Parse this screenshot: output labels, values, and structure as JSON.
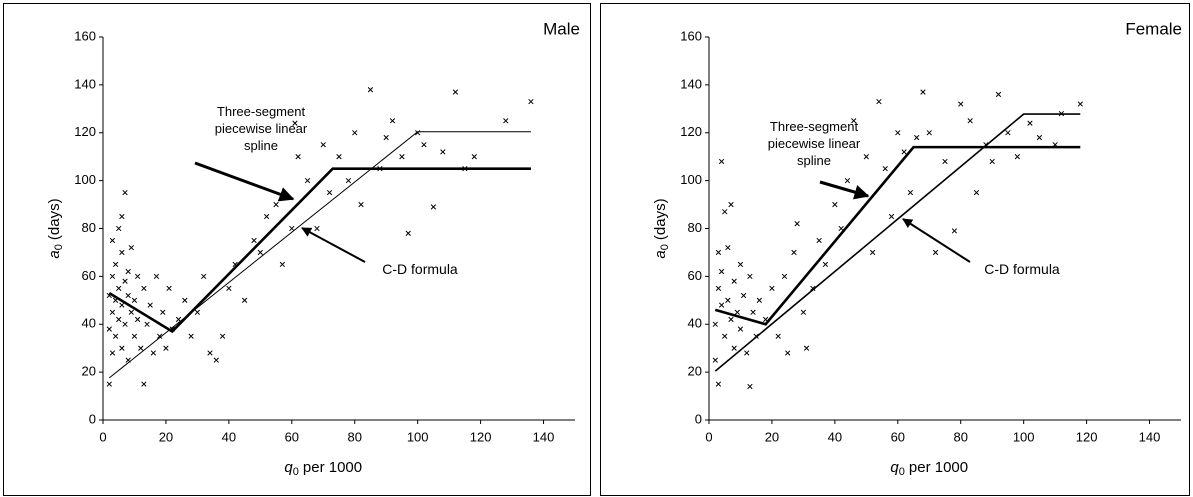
{
  "chart_data": [
    {
      "type": "scatter",
      "title": "Male",
      "xlabel": {
        "symbol": "q",
        "subscript": "0",
        "text": "per 1000"
      },
      "ylabel": {
        "symbol": "a",
        "subscript": "0",
        "text": "(days)"
      },
      "xlim": [
        0,
        150
      ],
      "xticks": [
        0,
        20,
        40,
        60,
        80,
        100,
        120,
        140
      ],
      "ylim": [
        0,
        160
      ],
      "yticks": [
        0,
        20,
        40,
        60,
        80,
        100,
        120,
        140,
        160
      ],
      "series": [
        {
          "marker": "x",
          "color": "#000000",
          "x": [
            2,
            2,
            2,
            3,
            3,
            3,
            3,
            4,
            4,
            4,
            5,
            5,
            5,
            6,
            6,
            6,
            6,
            7,
            7,
            7,
            8,
            8,
            8,
            9,
            9,
            10,
            10,
            11,
            11,
            12,
            13,
            13,
            14,
            15,
            16,
            17,
            18,
            19,
            20,
            21,
            22,
            24,
            26,
            28,
            30,
            32,
            34,
            36,
            38,
            40,
            42,
            45,
            48,
            50,
            52,
            55,
            57,
            60,
            61,
            62,
            65,
            68,
            70,
            72,
            75,
            78,
            80,
            82,
            85,
            88,
            90,
            92,
            95,
            97,
            100,
            102,
            105,
            108,
            112,
            115,
            118,
            128,
            136
          ],
          "values": [
            15,
            38,
            52,
            45,
            60,
            75,
            28,
            50,
            65,
            35,
            55,
            80,
            42,
            48,
            70,
            85,
            30,
            58,
            95,
            40,
            52,
            62,
            25,
            45,
            72,
            50,
            35,
            60,
            42,
            30,
            55,
            15,
            40,
            48,
            28,
            60,
            35,
            45,
            30,
            55,
            38,
            42,
            50,
            35,
            45,
            60,
            28,
            25,
            35,
            55,
            65,
            50,
            75,
            70,
            85,
            90,
            65,
            80,
            124,
            110,
            100,
            80,
            115,
            95,
            110,
            100,
            120,
            90,
            138,
            105,
            118,
            125,
            110,
            78,
            120,
            115,
            89,
            112,
            137,
            105,
            110,
            125,
            133
          ]
        },
        {
          "name": "Three-segment piecewise linear spline",
          "color": "#000000",
          "line_width": 2.6,
          "x": [
            2,
            22,
            73,
            136
          ],
          "values": [
            53,
            37,
            105,
            105
          ]
        },
        {
          "name": "C-D formula",
          "color": "#000000",
          "line_width": 1,
          "x": [
            2,
            100,
            136
          ],
          "values": [
            17.6,
            120.4,
            120.4
          ]
        }
      ]
    },
    {
      "type": "scatter",
      "title": "Female",
      "xlabel": {
        "symbol": "q",
        "subscript": "0",
        "text": "per 1000"
      },
      "ylabel": {
        "symbol": "a",
        "subscript": "0",
        "text": "(days)"
      },
      "xlim": [
        0,
        150
      ],
      "xticks": [
        0,
        20,
        40,
        60,
        80,
        100,
        120,
        140
      ],
      "ylim": [
        0,
        160
      ],
      "yticks": [
        0,
        20,
        40,
        60,
        80,
        100,
        120,
        140,
        160
      ],
      "series": [
        {
          "marker": "x",
          "color": "#000000",
          "x": [
            2,
            2,
            3,
            3,
            3,
            4,
            4,
            4,
            5,
            5,
            6,
            6,
            7,
            7,
            8,
            8,
            9,
            10,
            10,
            11,
            12,
            13,
            13,
            14,
            15,
            16,
            18,
            20,
            22,
            24,
            25,
            27,
            28,
            30,
            31,
            33,
            35,
            37,
            40,
            42,
            44,
            46,
            48,
            50,
            52,
            54,
            56,
            58,
            60,
            62,
            64,
            66,
            68,
            70,
            72,
            75,
            78,
            80,
            83,
            85,
            88,
            90,
            92,
            95,
            98,
            102,
            105,
            110,
            112,
            118
          ],
          "values": [
            40,
            25,
            55,
            70,
            15,
            108,
            48,
            62,
            35,
            87,
            50,
            72,
            42,
            90,
            58,
            30,
            45,
            65,
            38,
            52,
            28,
            14,
            60,
            45,
            35,
            50,
            42,
            55,
            35,
            60,
            28,
            70,
            82,
            45,
            30,
            55,
            75,
            65,
            90,
            80,
            100,
            125,
            95,
            110,
            70,
            133,
            105,
            85,
            120,
            112,
            95,
            118,
            137,
            120,
            70,
            108,
            79,
            132,
            125,
            95,
            115,
            108,
            136,
            120,
            110,
            124,
            118,
            115,
            128,
            132
          ]
        },
        {
          "name": "Three-segment piecewise linear spline",
          "color": "#000000",
          "line_width": 2.6,
          "x": [
            2,
            18,
            65,
            118
          ],
          "values": [
            46,
            40,
            114,
            114
          ]
        },
        {
          "name": "C-D formula",
          "color": "#000000",
          "line_width": 1.6,
          "x": [
            2,
            100,
            118
          ],
          "values": [
            20.4,
            127.8,
            127.8
          ]
        }
      ]
    }
  ]
}
